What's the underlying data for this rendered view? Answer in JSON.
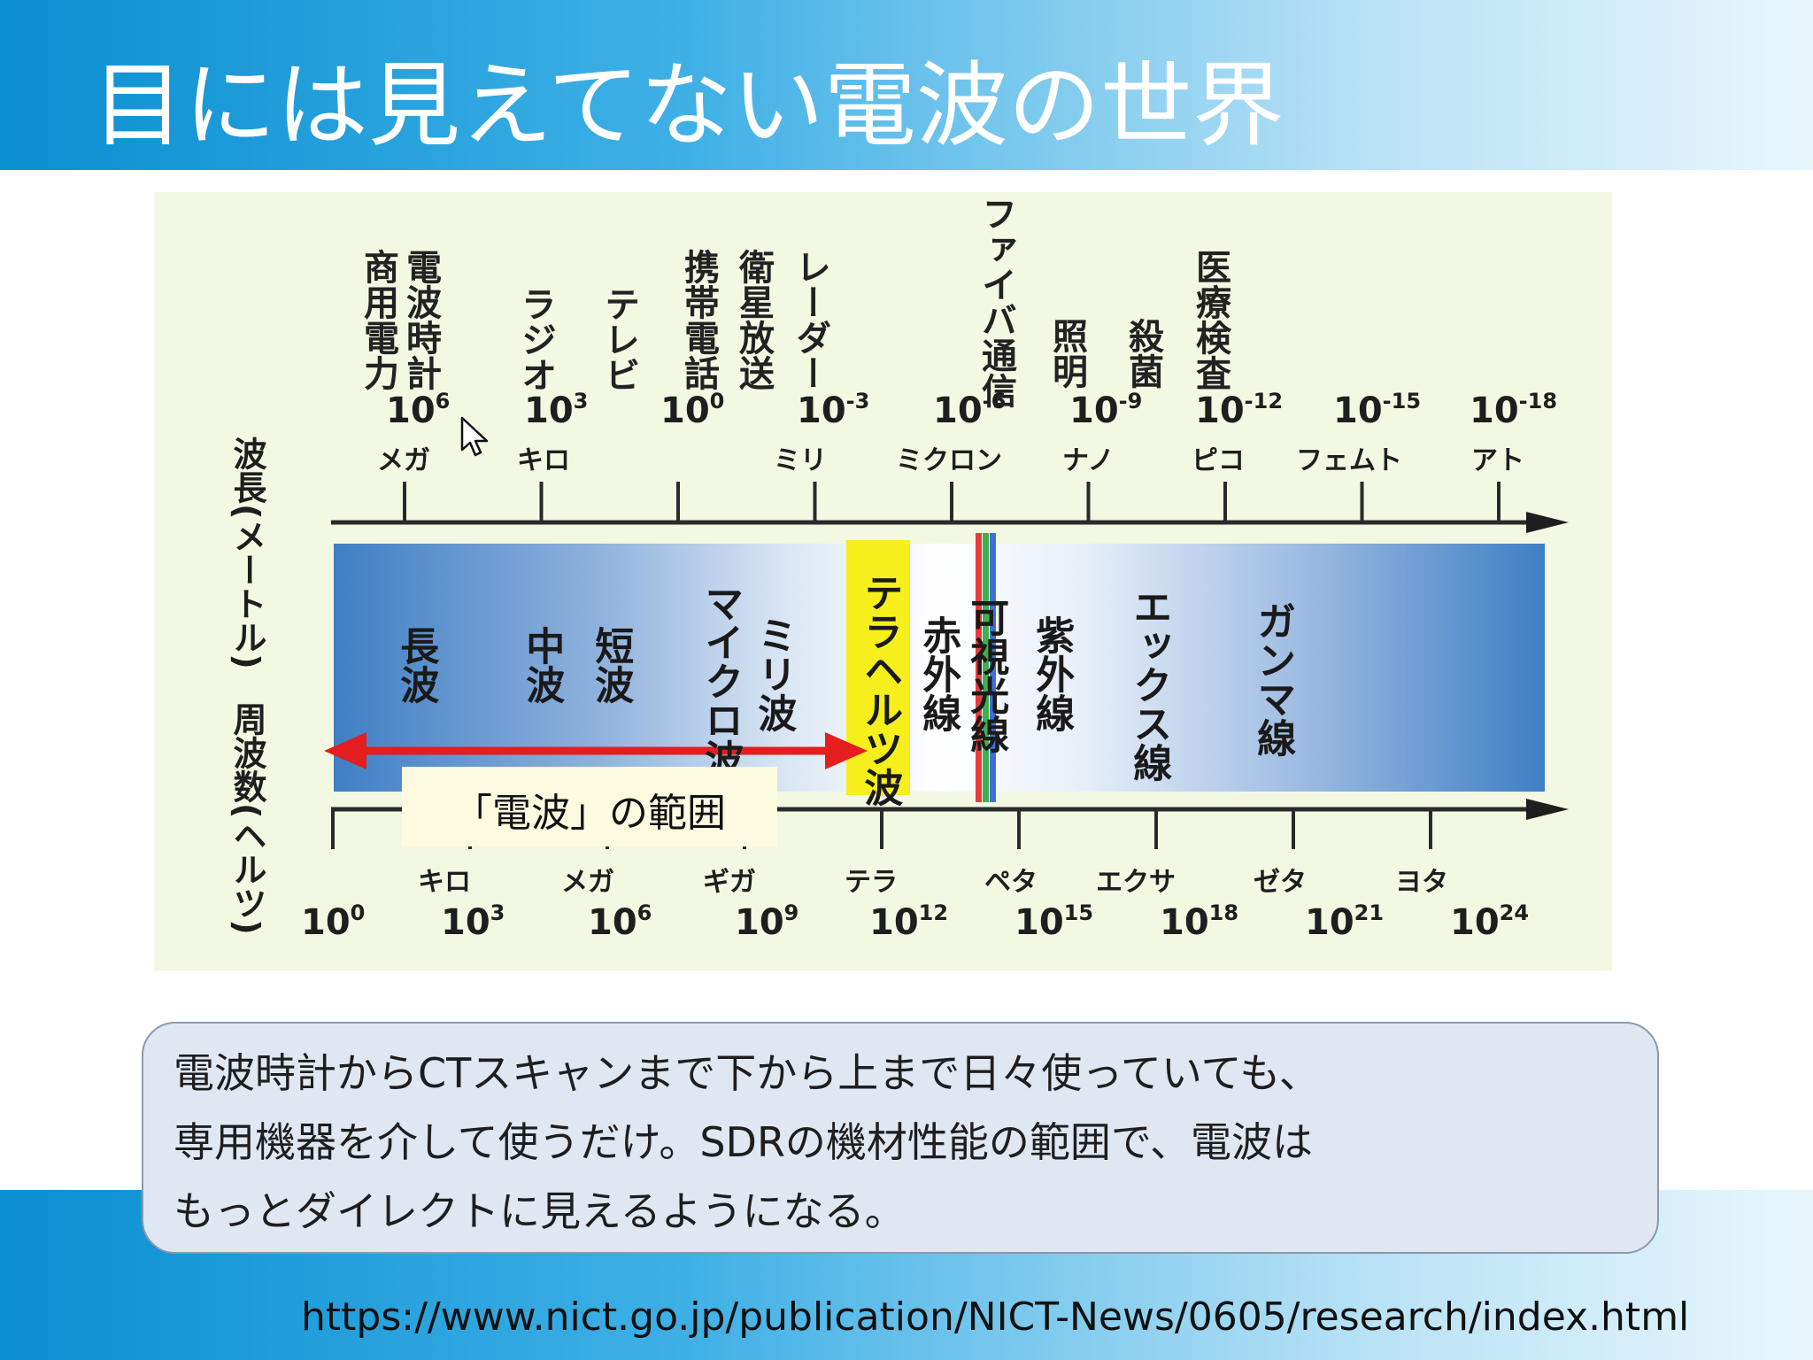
{
  "title": "目には見えてない電波の世界",
  "diagram": {
    "applications": [
      {
        "id": "shouyou-denryoku",
        "label": "商用電力"
      },
      {
        "id": "denpa-dokei",
        "label": "電波時計"
      },
      {
        "id": "radio",
        "label": "ラジオ"
      },
      {
        "id": "tv",
        "label": "テレビ"
      },
      {
        "id": "keitai-denwa",
        "label": "携帯電話"
      },
      {
        "id": "eisei-housou",
        "label": "衛星放送"
      },
      {
        "id": "radar",
        "label": "レーダー"
      },
      {
        "id": "fiber-tsushin",
        "label": "ファイバ通信"
      },
      {
        "id": "shoumei",
        "label": "照明"
      },
      {
        "id": "sakkin",
        "label": "殺菌"
      },
      {
        "id": "iryou-kensa",
        "label": "医療検査"
      }
    ],
    "wavelength_axis": {
      "label": "波長(メートル)",
      "ticks": [
        {
          "base": "10",
          "exp": "6",
          "prefix": "メガ"
        },
        {
          "base": "10",
          "exp": "3",
          "prefix": "キロ"
        },
        {
          "base": "10",
          "exp": "0",
          "prefix": ""
        },
        {
          "base": "10",
          "exp": "-3",
          "prefix": "ミリ"
        },
        {
          "base": "10",
          "exp": "-6",
          "prefix": "ミクロン"
        },
        {
          "base": "10",
          "exp": "-9",
          "prefix": "ナノ"
        },
        {
          "base": "10",
          "exp": "-12",
          "prefix": "ピコ"
        },
        {
          "base": "10",
          "exp": "-15",
          "prefix": "フェムト"
        },
        {
          "base": "10",
          "exp": "-18",
          "prefix": "アト"
        }
      ]
    },
    "bands": [
      {
        "id": "chouha",
        "label": "長波"
      },
      {
        "id": "chuuha",
        "label": "中波"
      },
      {
        "id": "tanpa",
        "label": "短波"
      },
      {
        "id": "microwave",
        "label": "マイクロ波"
      },
      {
        "id": "millimeter",
        "label": "ミリ波"
      },
      {
        "id": "terahertz",
        "label": "テラヘルツ波"
      },
      {
        "id": "infrared",
        "label": "赤外線"
      },
      {
        "id": "visible",
        "label": "可視光線"
      },
      {
        "id": "ultraviolet",
        "label": "紫外線"
      },
      {
        "id": "xray",
        "label": "エックス線"
      },
      {
        "id": "gamma",
        "label": "ガンマ線"
      }
    ],
    "radio_range_label": "「電波」の範囲",
    "frequency_axis": {
      "label": "周波数(ヘルツ)",
      "ticks": [
        {
          "base": "10",
          "exp": "0",
          "prefix": ""
        },
        {
          "base": "10",
          "exp": "3",
          "prefix": "キロ"
        },
        {
          "base": "10",
          "exp": "6",
          "prefix": "メガ"
        },
        {
          "base": "10",
          "exp": "9",
          "prefix": "ギガ"
        },
        {
          "base": "10",
          "exp": "12",
          "prefix": "テラ"
        },
        {
          "base": "10",
          "exp": "15",
          "prefix": "ペタ"
        },
        {
          "base": "10",
          "exp": "18",
          "prefix": "エクサ"
        },
        {
          "base": "10",
          "exp": "21",
          "prefix": "ゼタ"
        },
        {
          "base": "10",
          "exp": "24",
          "prefix": "ヨタ"
        }
      ]
    },
    "colors": {
      "band_blue": "#3f7fc4",
      "terahertz_yellow": "#f7ef1c",
      "range_arrow": "#e41e1e"
    }
  },
  "note": {
    "lines": [
      "電波時計からCTスキャンまで下から上まで日々使っていても、",
      "専用機器を介して使うだけ。SDRの機材性能の範囲で、電波は",
      "もっとダイレクトに見えるようになる。"
    ]
  },
  "source_url": "https://www.nict.go.jp/publication/NICT-News/0605/research/index.html"
}
